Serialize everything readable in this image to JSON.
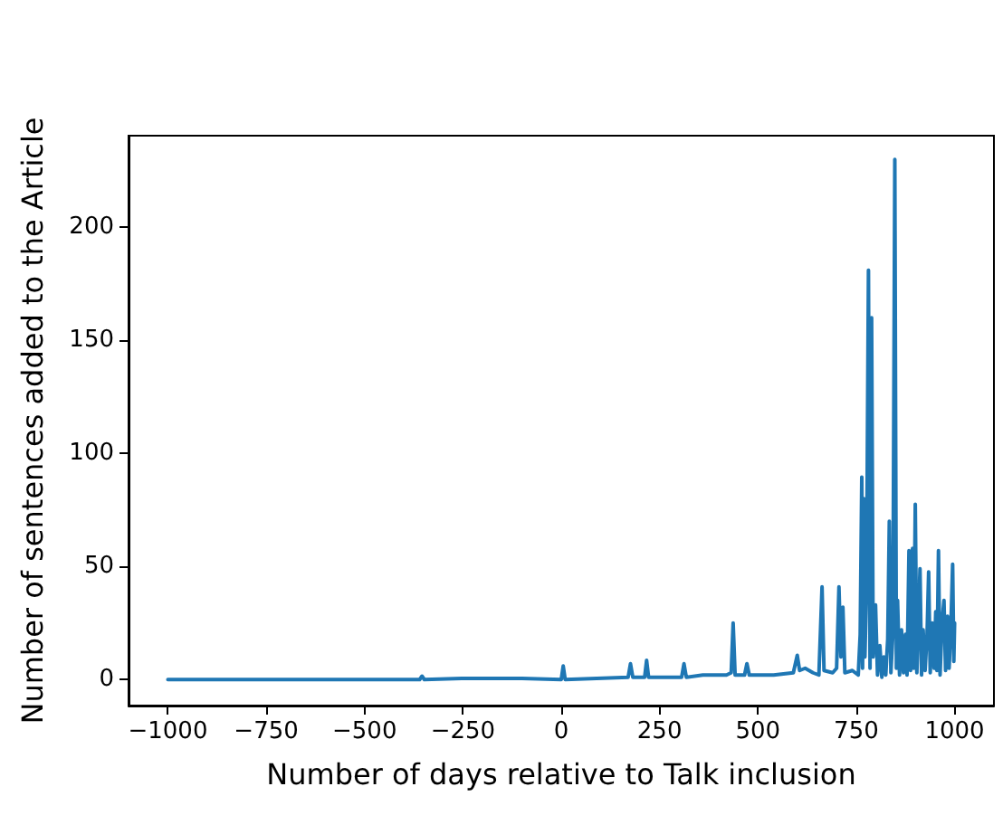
{
  "chart_data": {
    "type": "line",
    "xlabel": "Number of days relative to Talk inclusion",
    "ylabel": "Number of sentences added to the Article",
    "x": [
      -1000,
      -360,
      -354,
      -348,
      -250,
      -100,
      0,
      5,
      10,
      170,
      176,
      182,
      212,
      217,
      222,
      306,
      312,
      318,
      360,
      420,
      432,
      437,
      442,
      466,
      472,
      478,
      540,
      590,
      600,
      606,
      620,
      640,
      655,
      663,
      668,
      690,
      700,
      706,
      711,
      716,
      721,
      740,
      755,
      760,
      764,
      766,
      769,
      772,
      776,
      781,
      785,
      789,
      793,
      796,
      799,
      804,
      810,
      815,
      820,
      825,
      830,
      834,
      838,
      843,
      848,
      852,
      855,
      860,
      865,
      870,
      875,
      879,
      884,
      888,
      893,
      896,
      900,
      904,
      908,
      912,
      916,
      920,
      925,
      930,
      934,
      938,
      943,
      948,
      952,
      955,
      959,
      963,
      968,
      973,
      977,
      982,
      986,
      990,
      995,
      998,
      1000
    ],
    "series": [
      {
        "color": "#1f77b4",
        "values": [
          0,
          0,
          1.5,
          0,
          0.5,
          0.5,
          0,
          6,
          0,
          1,
          7,
          1,
          1,
          8.5,
          1,
          1,
          7,
          1,
          2,
          2,
          3,
          25,
          2,
          2,
          7,
          2,
          2,
          3,
          10.7,
          4,
          5,
          3,
          2,
          41,
          4,
          3,
          5,
          41,
          10,
          32,
          3,
          4,
          2,
          20,
          89.5,
          5,
          80,
          10,
          40,
          181,
          5,
          160,
          10,
          25,
          33,
          2,
          15,
          1,
          10,
          2,
          18,
          70,
          3,
          20,
          230,
          5,
          35,
          2,
          22,
          3,
          20,
          2,
          57,
          4,
          58,
          5,
          77.5,
          3,
          25,
          49,
          2,
          22,
          4,
          20,
          47.6,
          3,
          25,
          5,
          30,
          4,
          57,
          2,
          25,
          35,
          4,
          28,
          5,
          20,
          51,
          8,
          25
        ]
      }
    ],
    "xlim": [
      -1100,
      1100
    ],
    "xticks": [
      -1000,
      -750,
      -500,
      -250,
      0,
      250,
      500,
      750,
      1000
    ],
    "ylim": [
      -11.5,
      240.5
    ],
    "yticks": [
      0,
      50,
      100,
      150,
      200
    ],
    "grid": false,
    "marker": "none",
    "line_style": "solid"
  }
}
